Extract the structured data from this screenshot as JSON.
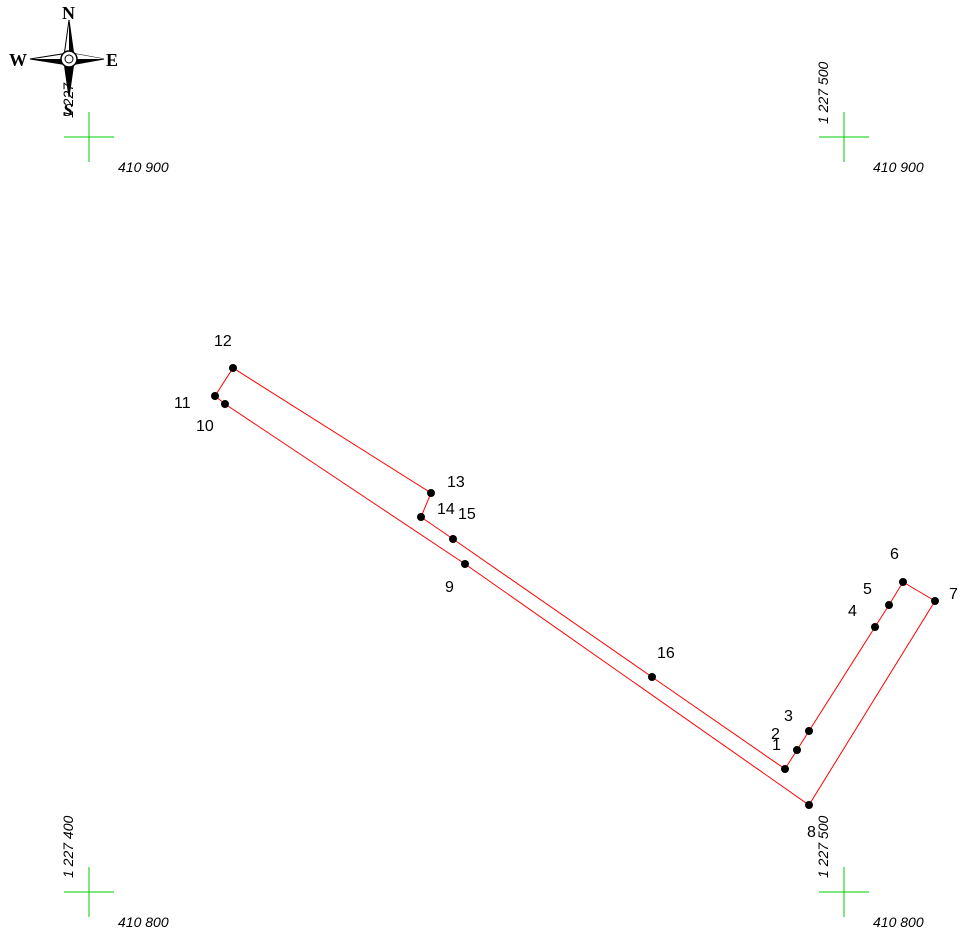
{
  "compass": {
    "north": "N",
    "south": "S",
    "east": "E",
    "west": "W",
    "icon": "compass-rose-icon"
  },
  "colors": {
    "parcel_line": "#ff0000",
    "grid_cross": "#00cc00",
    "point": "#000000"
  },
  "grid": {
    "top_left": {
      "x_label": "410 900"
    },
    "top_right": {
      "x_label": "410 900",
      "y_label": "1 227 500"
    },
    "bottom_left": {
      "x_label": "410 800",
      "y_label": "1 227 400"
    },
    "bottom_right": {
      "x_label": "410 800",
      "y_label": "1 227 500"
    },
    "compass_overlap_label": "1 227"
  },
  "points": [
    {
      "id": "1"
    },
    {
      "id": "2"
    },
    {
      "id": "3"
    },
    {
      "id": "4"
    },
    {
      "id": "5"
    },
    {
      "id": "6"
    },
    {
      "id": "7"
    },
    {
      "id": "8"
    },
    {
      "id": "9"
    },
    {
      "id": "10"
    },
    {
      "id": "11"
    },
    {
      "id": "12"
    },
    {
      "id": "13"
    },
    {
      "id": "14"
    },
    {
      "id": "15"
    },
    {
      "id": "16"
    }
  ],
  "parcel_inner_ring": [
    "1",
    "2",
    "3",
    "4",
    "5",
    "6",
    "7",
    "8",
    "9",
    "10",
    "11",
    "12",
    "13",
    "14",
    "15",
    "16",
    "1"
  ]
}
